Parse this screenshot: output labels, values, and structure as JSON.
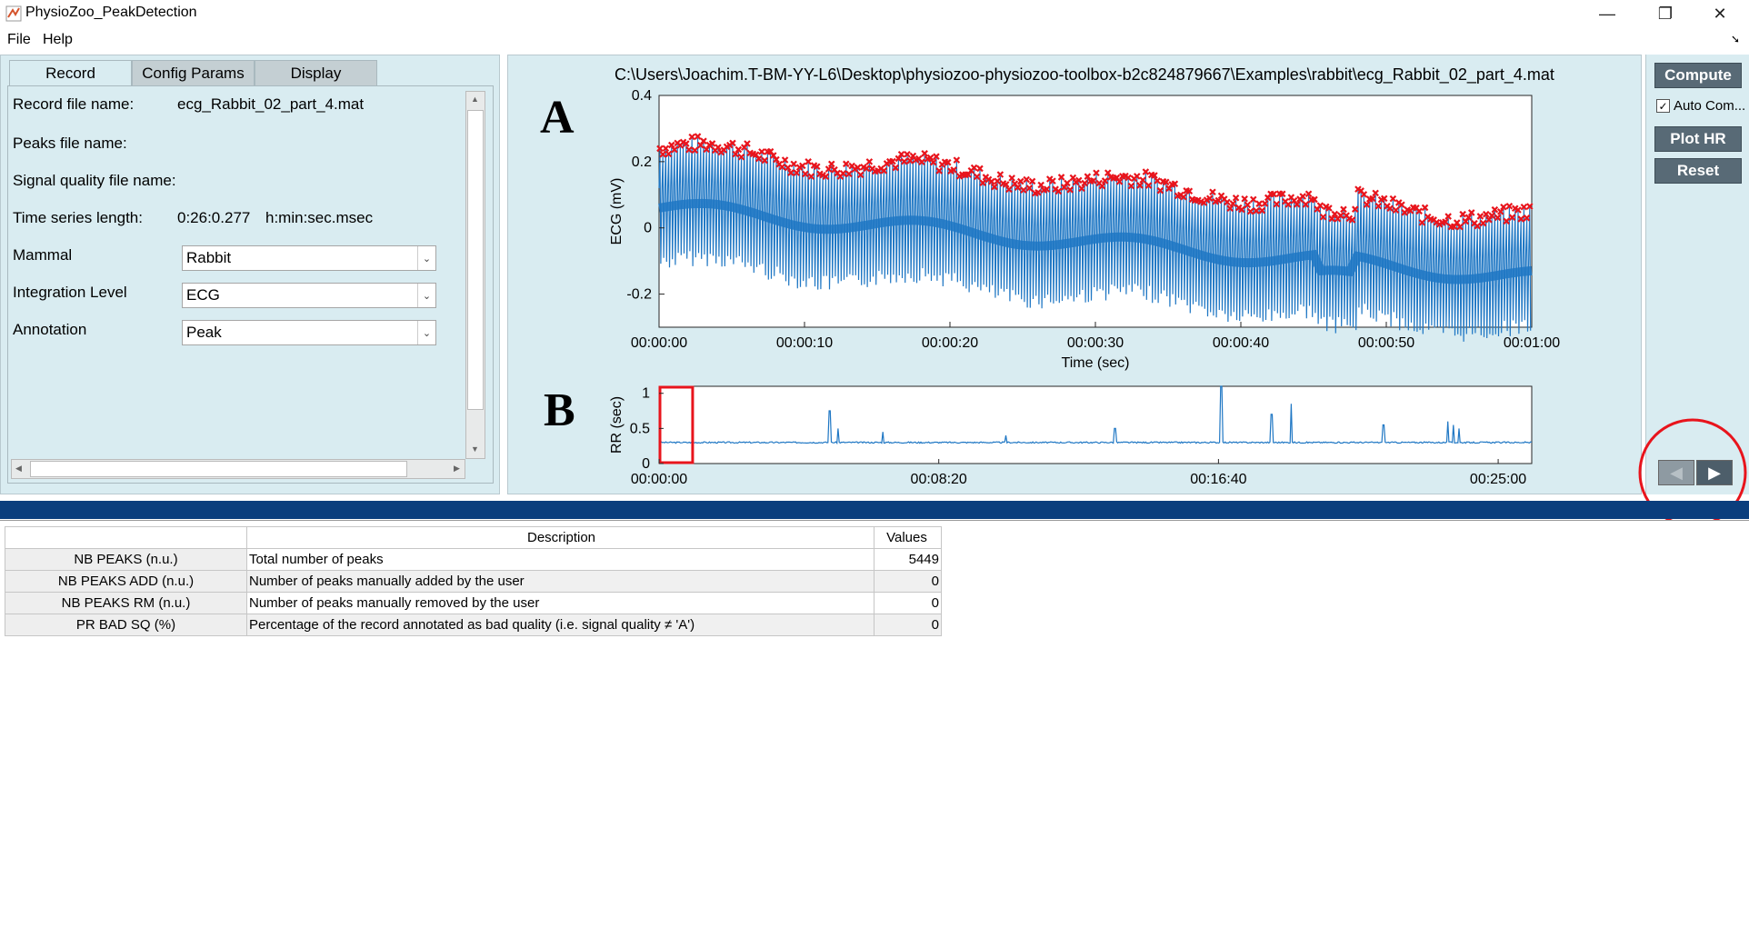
{
  "window": {
    "title": "PhysioZoo_PeakDetection",
    "minimize": "—",
    "restore": "❐",
    "close": "✕"
  },
  "menu": {
    "file": "File",
    "help": "Help"
  },
  "tabs": [
    {
      "label": "Record"
    },
    {
      "label": "Config Params"
    },
    {
      "label": "Display"
    }
  ],
  "record": {
    "record_file_label": "Record file name:",
    "record_file_value": "ecg_Rabbit_02_part_4.mat",
    "peaks_file_label": "Peaks file name:",
    "sq_file_label": "Signal quality file name:",
    "ts_length_label": "Time series length:",
    "ts_length_value": "0:26:0.277",
    "ts_length_unit": "h:min:sec.msec",
    "mammal_label": "Mammal",
    "mammal_value": "Rabbit",
    "integration_label": "Integration Level",
    "integration_value": "ECG",
    "annotation_label": "Annotation",
    "annotation_value": "Peak"
  },
  "plot": {
    "title": "C:\\Users\\Joachim.T-BM-YY-L6\\Desktop\\physiozoo-physiozoo-toolbox-b2c824879667\\Examples\\rabbit\\ecg_Rabbit_02_part_4.mat",
    "letter_a": "A",
    "letter_b": "B"
  },
  "buttons": {
    "compute": "Compute",
    "auto_compute": "Auto Com...",
    "plot_hr": "Plot HR",
    "reset": "Reset",
    "prev": "◀",
    "next": "▶"
  },
  "chart_data": [
    {
      "type": "line",
      "name": "ecg-plot",
      "xlabel": "Time (sec)",
      "ylabel": "ECG (mV)",
      "ylim": [
        -0.3,
        0.4
      ],
      "xlim": [
        0,
        60
      ],
      "x_tick_labels": [
        "00:00:00",
        "00:00:10",
        "00:00:20",
        "00:00:30",
        "00:00:40",
        "00:00:50",
        "00:01:00"
      ],
      "y_tick_labels": [
        "0.4",
        "0.2",
        "0",
        "-0.2"
      ],
      "y_ticks": [
        0.4,
        0.2,
        0,
        -0.2
      ],
      "series": [
        {
          "type": "line",
          "color": "#1f77c4"
        },
        {
          "type": "scatter",
          "marker": "x",
          "color": "#e8141c",
          "approx_peak_level": 0.22
        }
      ]
    },
    {
      "type": "line",
      "name": "rr-plot",
      "xlabel": "",
      "ylabel": "RR (sec)",
      "ylim": [
        0,
        1.1
      ],
      "xlim": [
        0,
        1560
      ],
      "x_tick_labels": [
        "00:00:00",
        "00:08:20",
        "00:16:40",
        "00:25:00"
      ],
      "y_tick_labels": [
        "1",
        "0.5",
        "0"
      ],
      "y_ticks": [
        1,
        0.5,
        0
      ],
      "baseline": 0.3,
      "spikes": [
        {
          "t": 305,
          "v": 0.75
        },
        {
          "t": 320,
          "v": 0.5
        },
        {
          "t": 400,
          "v": 0.45
        },
        {
          "t": 620,
          "v": 0.4
        },
        {
          "t": 815,
          "v": 0.5
        },
        {
          "t": 1005,
          "v": 1.1
        },
        {
          "t": 1095,
          "v": 0.7
        },
        {
          "t": 1130,
          "v": 0.85
        },
        {
          "t": 1295,
          "v": 0.55
        },
        {
          "t": 1410,
          "v": 0.6
        },
        {
          "t": 1420,
          "v": 0.55
        },
        {
          "t": 1430,
          "v": 0.5
        }
      ],
      "selection_window": [
        0,
        60
      ],
      "line_color": "#1f77c4",
      "selection_color": "#e8141c"
    }
  ],
  "table": {
    "headers": [
      "",
      "Description",
      "Values"
    ],
    "rows": [
      {
        "name": "NB PEAKS (n.u.)",
        "desc": "Total number of peaks",
        "value": "5449"
      },
      {
        "name": "NB PEAKS ADD (n.u.)",
        "desc": "Number of peaks manually added by the user",
        "value": "0"
      },
      {
        "name": "NB PEAKS RM (n.u.)",
        "desc": "Number of peaks manually removed by the user",
        "value": "0"
      },
      {
        "name": "PR BAD SQ (%)",
        "desc": "Percentage of the record annotated as bad quality (i.e. signal quality ≠ 'A')",
        "value": "0"
      }
    ]
  },
  "colors": {
    "panel_bg": "#d9ecf1",
    "button_bg": "#586a76",
    "splitter": "#0b3e7d",
    "annotation_red": "#e8141c"
  }
}
